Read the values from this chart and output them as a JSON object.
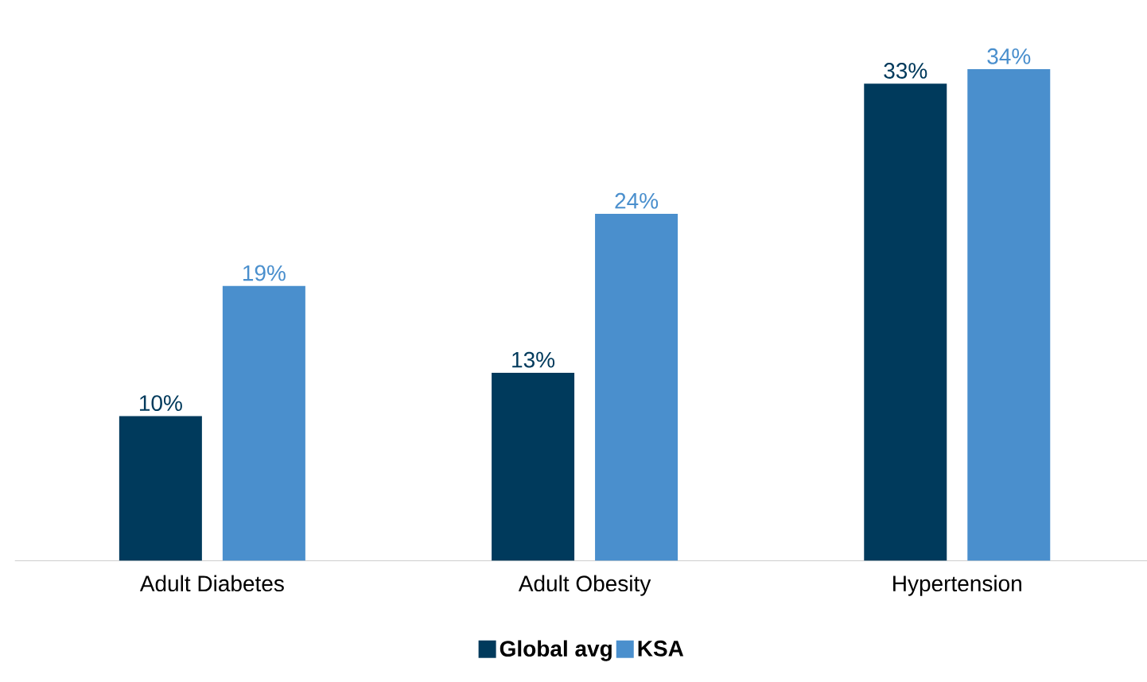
{
  "chart_data": {
    "type": "bar",
    "categories": [
      "Adult Diabetes",
      "Adult Obesity",
      "Hypertension"
    ],
    "series": [
      {
        "name": "Global avg",
        "color": "#003a5c",
        "values": [
          10,
          13,
          33
        ],
        "value_labels": [
          "10%",
          "13%",
          "33%"
        ]
      },
      {
        "name": "KSA",
        "color": "#4a8fcd",
        "values": [
          19,
          24,
          34
        ],
        "value_labels": [
          "19%",
          "24%",
          "34%"
        ]
      }
    ],
    "legend": "bottom"
  }
}
